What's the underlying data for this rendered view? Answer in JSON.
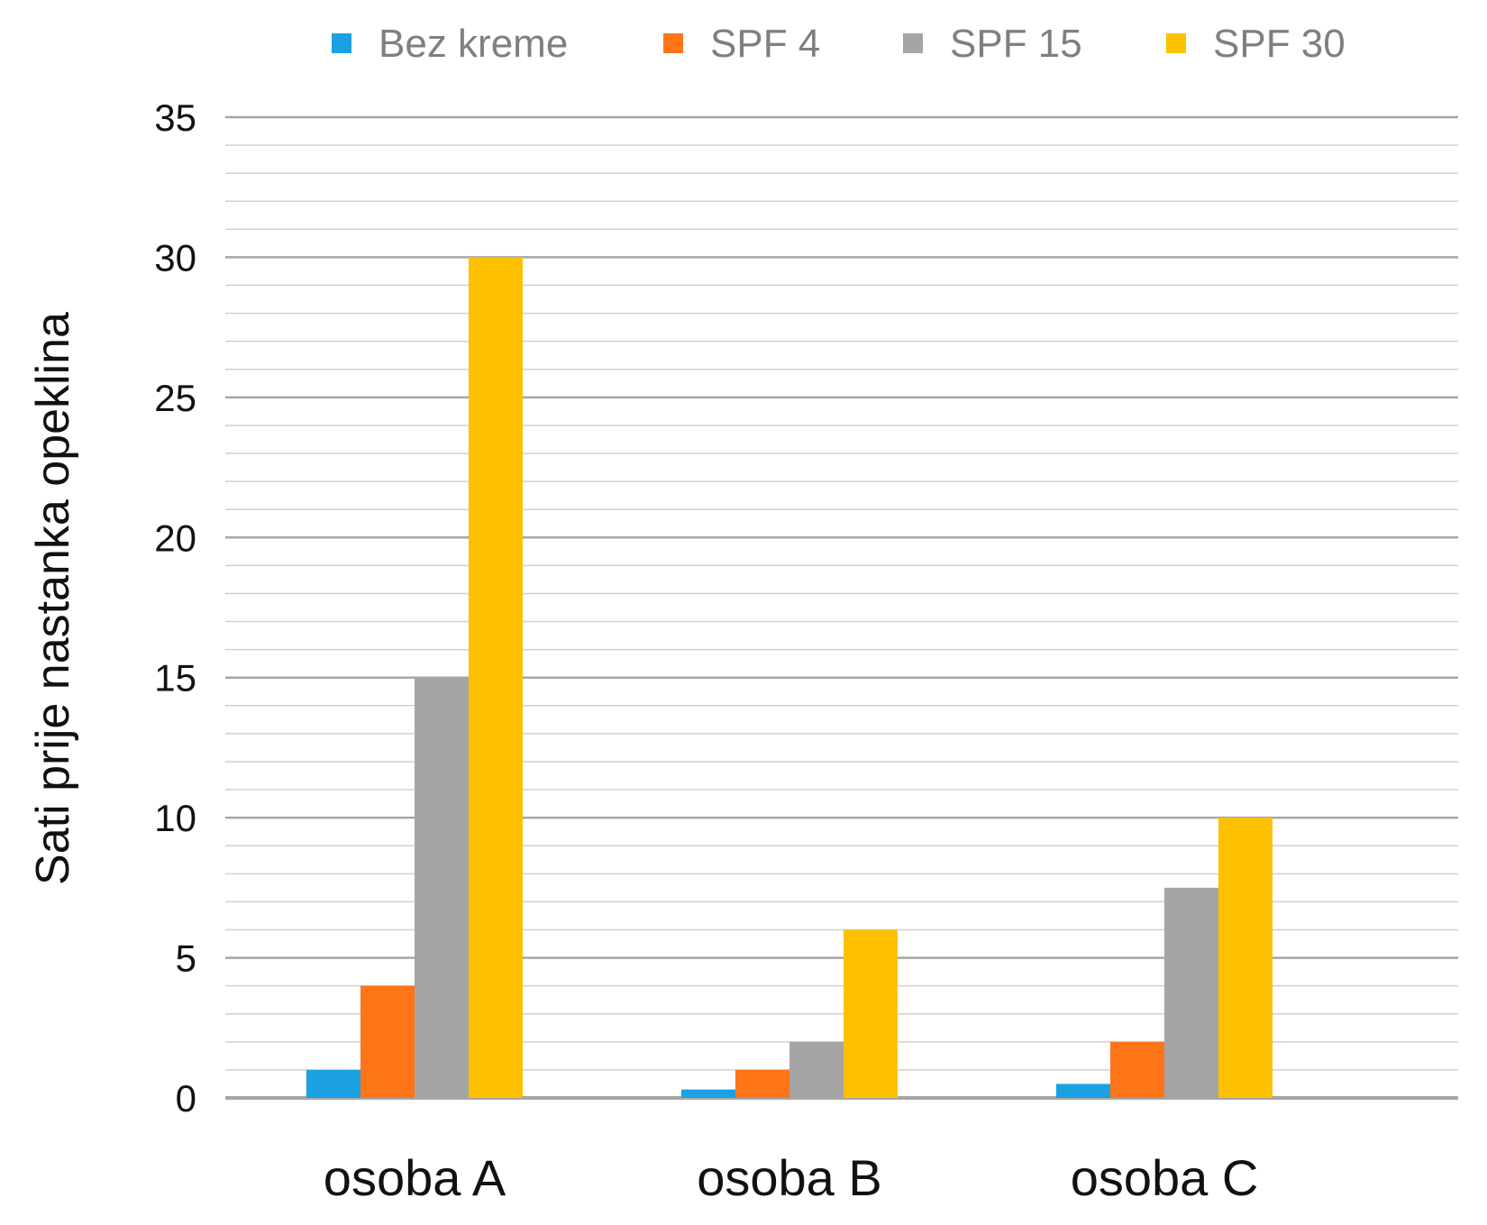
{
  "chart_data": {
    "type": "bar",
    "title": "",
    "xlabel": "",
    "ylabel": "Sati prije nastanka opeklina",
    "categories": [
      "osoba A",
      "osoba B",
      "osoba C"
    ],
    "series": [
      {
        "name": "Bez kreme",
        "color": "#1ba1e2",
        "values": [
          1,
          0.3,
          0.5
        ]
      },
      {
        "name": "SPF 4",
        "color": "#ff7518",
        "values": [
          4,
          1,
          2
        ]
      },
      {
        "name": "SPF 15",
        "color": "#a5a5a5",
        "values": [
          15,
          2,
          7.5
        ]
      },
      {
        "name": "SPF 30",
        "color": "#ffc000",
        "values": [
          30,
          6,
          10
        ]
      }
    ],
    "ylim": [
      0,
      35
    ],
    "y_major_step": 5,
    "y_minor_step": 1,
    "y_ticks": [
      "0",
      "5",
      "10",
      "15",
      "20",
      "25",
      "30",
      "35"
    ],
    "grid": true,
    "legend_position": "top"
  }
}
